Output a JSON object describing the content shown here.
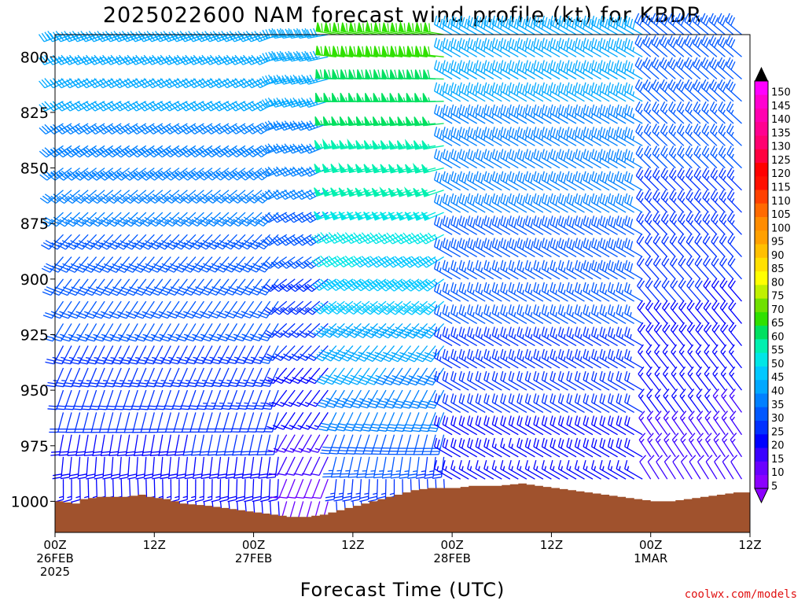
{
  "chart_data": {
    "type": "wind-barb-profile",
    "title": "2025022600 NAM forecast wind profile (kt) for KBDR",
    "xlabel": "Forecast Time (UTC)",
    "credit": "coolwx.com/models",
    "x_ticks": [
      {
        "hour": 0,
        "line1": "00Z",
        "line2": "26FEB",
        "line3": "2025"
      },
      {
        "hour": 12,
        "line1": "12Z",
        "line2": "",
        "line3": ""
      },
      {
        "hour": 24,
        "line1": "00Z",
        "line2": "27FEB",
        "line3": ""
      },
      {
        "hour": 36,
        "line1": "12Z",
        "line2": "",
        "line3": ""
      },
      {
        "hour": 48,
        "line1": "00Z",
        "line2": "28FEB",
        "line3": ""
      },
      {
        "hour": 60,
        "line1": "12Z",
        "line2": "",
        "line3": ""
      },
      {
        "hour": 72,
        "line1": "00Z",
        "line2": "1MAR",
        "line3": ""
      },
      {
        "hour": 84,
        "line1": "12Z",
        "line2": "",
        "line3": ""
      }
    ],
    "xlim": [
      0,
      84
    ],
    "y_ticks": [
      800,
      825,
      850,
      875,
      900,
      925,
      950,
      975,
      1000
    ],
    "ylim": [
      1014,
      790
    ],
    "y_unit": "hPa",
    "colorbar": {
      "levels": [
        5,
        10,
        15,
        20,
        25,
        30,
        35,
        40,
        45,
        50,
        55,
        60,
        65,
        70,
        75,
        80,
        85,
        90,
        95,
        100,
        105,
        110,
        115,
        120,
        125,
        130,
        135,
        140,
        145,
        150
      ],
      "colors": [
        "#8b00ff",
        "#6a00ff",
        "#3a00ff",
        "#0000ff",
        "#0030ff",
        "#0058ff",
        "#0080ff",
        "#00a8ff",
        "#00c8ff",
        "#00e6e6",
        "#00f0b0",
        "#00e060",
        "#30e000",
        "#70e000",
        "#c0f000",
        "#ffff00",
        "#ffe000",
        "#ffc000",
        "#ffa000",
        "#ff8c00",
        "#ff6a00",
        "#ff4000",
        "#ff1000",
        "#ff0000",
        "#ff0040",
        "#ff0070",
        "#ff0090",
        "#ff00b0",
        "#ff00d0",
        "#ff00ff"
      ],
      "extend": "both"
    },
    "terrain": {
      "color": "#a0522d",
      "surface_pressure": [
        [
          0,
          1000
        ],
        [
          2,
          1001
        ],
        [
          3,
          999
        ],
        [
          5,
          998
        ],
        [
          8,
          998
        ],
        [
          10,
          997
        ],
        [
          11,
          998
        ],
        [
          13,
          999
        ],
        [
          15,
          1001
        ],
        [
          18,
          1002
        ],
        [
          20,
          1003
        ],
        [
          22,
          1004
        ],
        [
          24,
          1005
        ],
        [
          26,
          1006
        ],
        [
          28,
          1007
        ],
        [
          30,
          1007
        ],
        [
          32,
          1006
        ],
        [
          34,
          1004
        ],
        [
          36,
          1002
        ],
        [
          38,
          1000
        ],
        [
          40,
          998
        ],
        [
          42,
          996
        ],
        [
          43,
          995
        ],
        [
          45,
          994
        ],
        [
          48,
          994
        ],
        [
          50,
          993
        ],
        [
          53,
          993
        ],
        [
          56,
          992
        ],
        [
          58,
          993
        ],
        [
          60,
          994
        ],
        [
          62,
          995
        ],
        [
          64,
          996
        ],
        [
          66,
          997
        ],
        [
          68,
          998
        ],
        [
          70,
          999
        ],
        [
          72,
          1000
        ],
        [
          74,
          1000
        ],
        [
          76,
          999
        ],
        [
          78,
          998
        ],
        [
          80,
          997
        ],
        [
          82,
          996
        ],
        [
          84,
          996
        ]
      ]
    },
    "wind_field": {
      "levels_hpa": [
        790,
        800,
        810,
        820,
        830,
        840,
        850,
        860,
        870,
        880,
        890,
        900,
        910,
        920,
        930,
        940,
        950,
        960,
        970,
        980,
        990,
        1000
      ],
      "time_step_hours": 1,
      "regimes": [
        {
          "hours": [
            0,
            28
          ],
          "low_speed_kt": 15,
          "high_speed_kt": 38,
          "low_dir_deg": 170,
          "high_dir_deg": 250
        },
        {
          "hours": [
            28,
            34
          ],
          "low_speed_kt": 5,
          "high_speed_kt": 40,
          "low_dir_deg": 190,
          "high_dir_deg": 260
        },
        {
          "hours": [
            34,
            48
          ],
          "low_speed_kt": 20,
          "high_speed_kt": 62,
          "low_dir_deg": 170,
          "high_dir_deg": 280
        },
        {
          "hours": [
            48,
            72
          ],
          "low_speed_kt": 15,
          "high_speed_kt": 38,
          "low_dir_deg": 300,
          "high_dir_deg": 300
        },
        {
          "hours": [
            72,
            84
          ],
          "low_speed_kt": 10,
          "high_speed_kt": 30,
          "low_dir_deg": 330,
          "high_dir_deg": 310
        }
      ]
    }
  }
}
